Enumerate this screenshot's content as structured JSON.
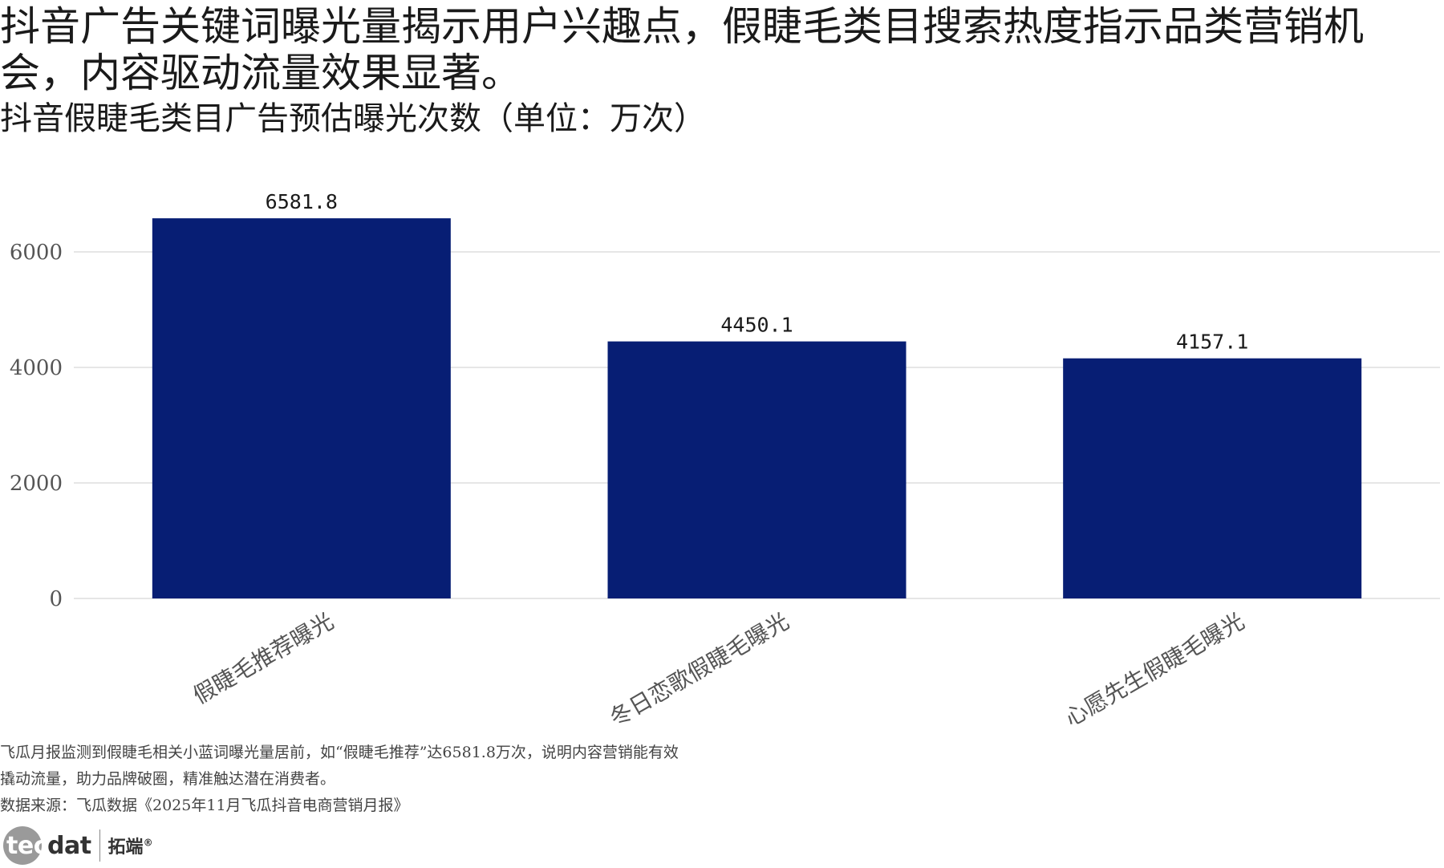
{
  "headline": "抖音广告关键词曝光量揭示用户兴趣点，假睫毛类目搜索热度指示品类营销机会，内容驱动流量效果显著。",
  "subtitle": "抖音假睫毛类目广告预估曝光次数（单位：万次）",
  "notes": [
    "飞瓜月报监测到假睫毛相关小蓝词曝光量居前，如“假睫毛推荐”达6581.8万次，说明内容营销能有效",
    "撬动流量，助力品牌破圈，精准触达潜在消费者。",
    "数据来源：飞瓜数据《2025年11月飞瓜抖音电商营销月报》"
  ],
  "logo": {
    "brand_a": "tec",
    "brand_b": "dat",
    "cn": "拓端",
    "mark": "®"
  },
  "colors": {
    "bar": "#071e74",
    "grid": "#e6e6e6",
    "tick": "#555555"
  },
  "chart_data": {
    "type": "bar",
    "title": "抖音假睫毛类目广告预估曝光次数（单位：万次）",
    "xlabel": "",
    "ylabel": "",
    "categories": [
      "假睫毛推荐曝光",
      "冬日恋歌假睫毛曝光",
      "心愿先生假睫毛曝光"
    ],
    "values": [
      6581.8,
      4450.1,
      4157.1
    ],
    "value_labels": [
      "6581.8",
      "4450.1",
      "4157.1"
    ],
    "yticks": [
      0,
      2000,
      4000,
      6000
    ],
    "ylim": [
      0,
      6800
    ],
    "grid": true,
    "legend": "none"
  }
}
